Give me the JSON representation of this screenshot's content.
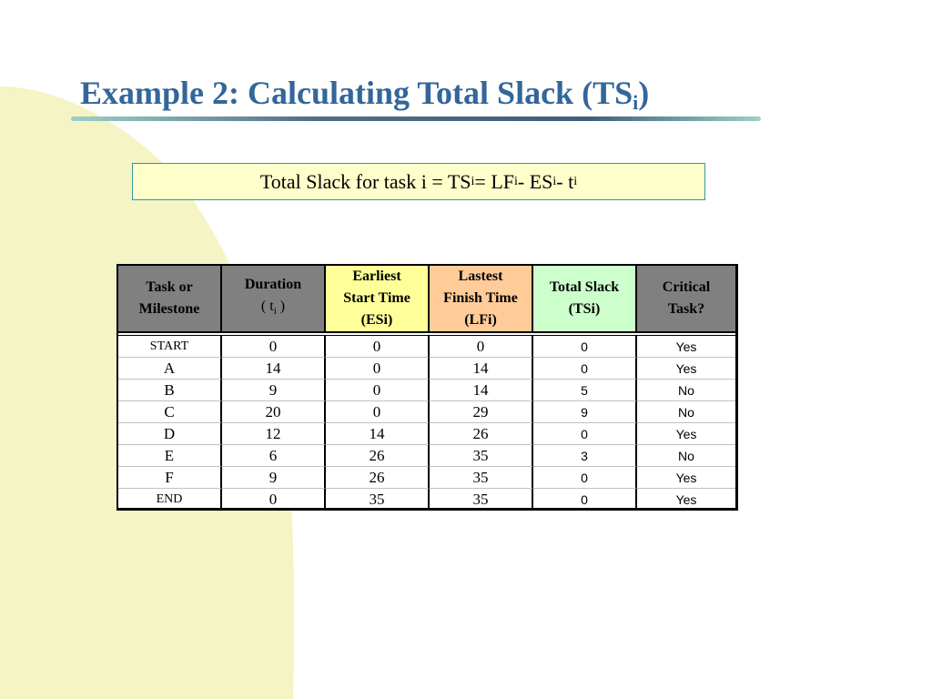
{
  "title": {
    "main": "Example 2: Calculating Total Slack (TS",
    "sub": "i",
    "close": ")"
  },
  "formula": {
    "lead": "Total Slack for task i = TS",
    "sub1": "i",
    "mid1": " = LF",
    "sub2": "i",
    "mid2": " - ES",
    "sub3": "i",
    "mid3": " - t",
    "sub4": "i"
  },
  "colors": {
    "title": "#336699",
    "header_gray": "#808080",
    "header_es": "#ffff99",
    "header_lf": "#ffcc99",
    "header_ts": "#ccffcc",
    "formula_bg": "#ffffcc",
    "formula_border": "#339999",
    "bg_shape": "#f2f2c0"
  },
  "table": {
    "headers": [
      [
        "Task or",
        "Milestone"
      ],
      [
        "Duration",
        "( t",
        "i",
        " )"
      ],
      [
        "Earliest",
        "Start Time",
        "(ESi)"
      ],
      [
        "Lastest",
        "Finish Time",
        "(LFi)"
      ],
      [
        "Total Slack",
        "(TSi)"
      ],
      [
        "Critical",
        "Task?"
      ]
    ],
    "rows": [
      [
        "START",
        "0",
        "0",
        "0",
        "0",
        "Yes"
      ],
      [
        "A",
        "14",
        "0",
        "14",
        "0",
        "Yes"
      ],
      [
        "B",
        "9",
        "0",
        "14",
        "5",
        "No"
      ],
      [
        "C",
        "20",
        "0",
        "29",
        "9",
        "No"
      ],
      [
        "D",
        "12",
        "14",
        "26",
        "0",
        "Yes"
      ],
      [
        "E",
        "6",
        "26",
        "35",
        "3",
        "No"
      ],
      [
        "F",
        "9",
        "26",
        "35",
        "0",
        "Yes"
      ],
      [
        "END",
        "0",
        "35",
        "35",
        "0",
        "Yes"
      ]
    ]
  }
}
